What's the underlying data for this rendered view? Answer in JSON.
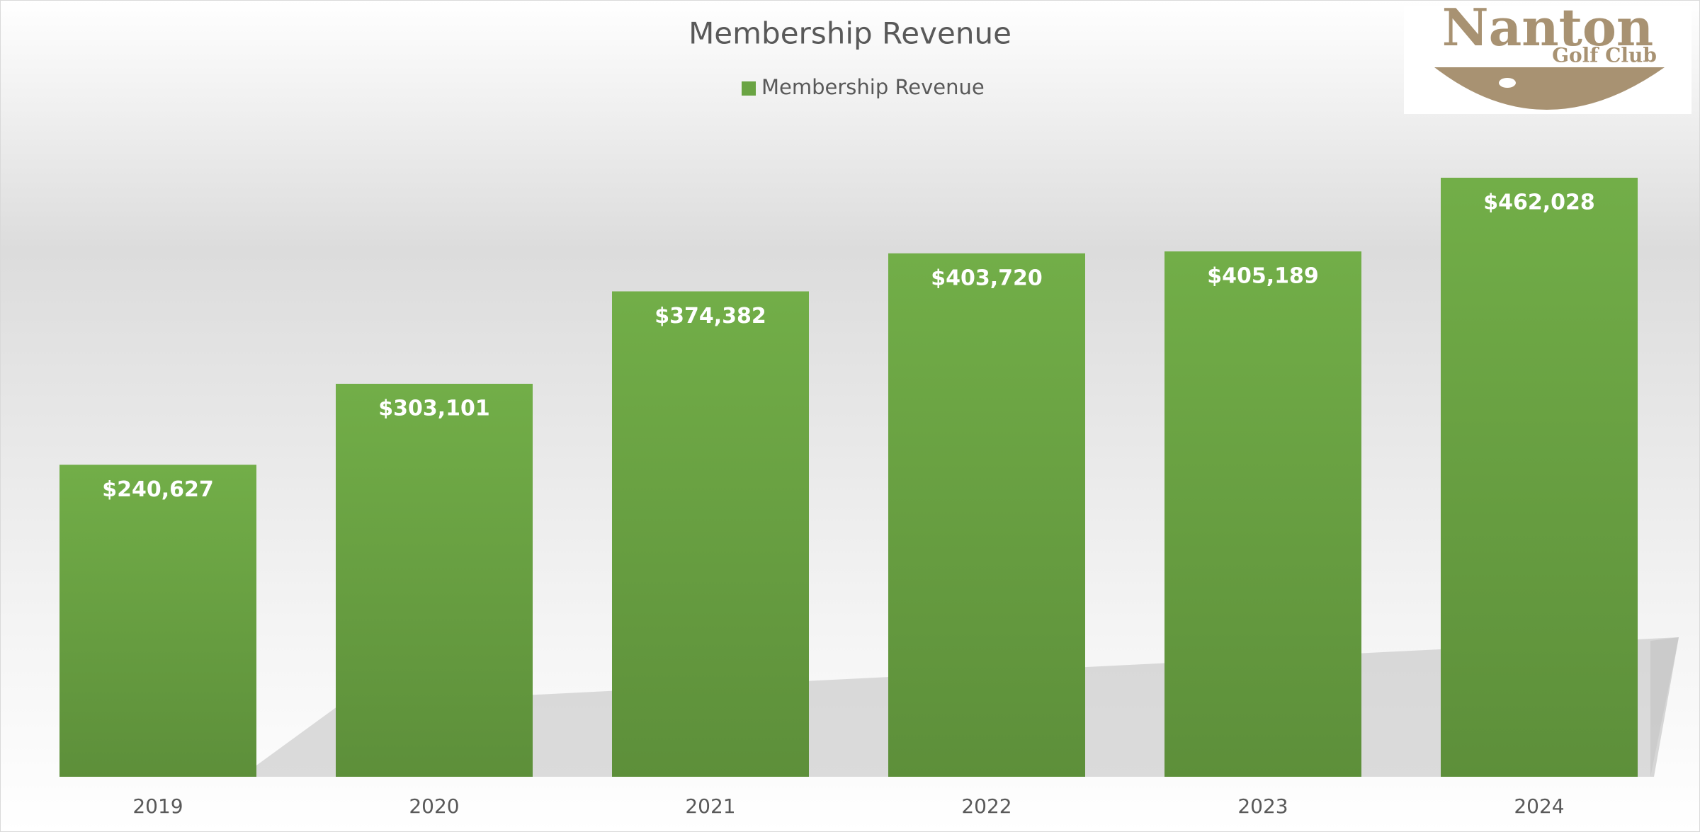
{
  "chart_data": {
    "type": "bar",
    "title": "Membership Revenue",
    "series": [
      {
        "name": "Membership Revenue",
        "color": "#6aa443",
        "values": [
          240627,
          303101,
          374382,
          403720,
          405189,
          462028
        ],
        "value_labels": [
          "$240,627",
          "$303,101",
          "$374,382",
          "$403,720",
          "$405,189",
          "$462,028"
        ]
      }
    ],
    "categories": [
      "2019",
      "2020",
      "2021",
      "2022",
      "2023",
      "2024"
    ],
    "legend": "top"
  },
  "logo": {
    "name": "Nanton",
    "subtitle": "Golf Club"
  }
}
